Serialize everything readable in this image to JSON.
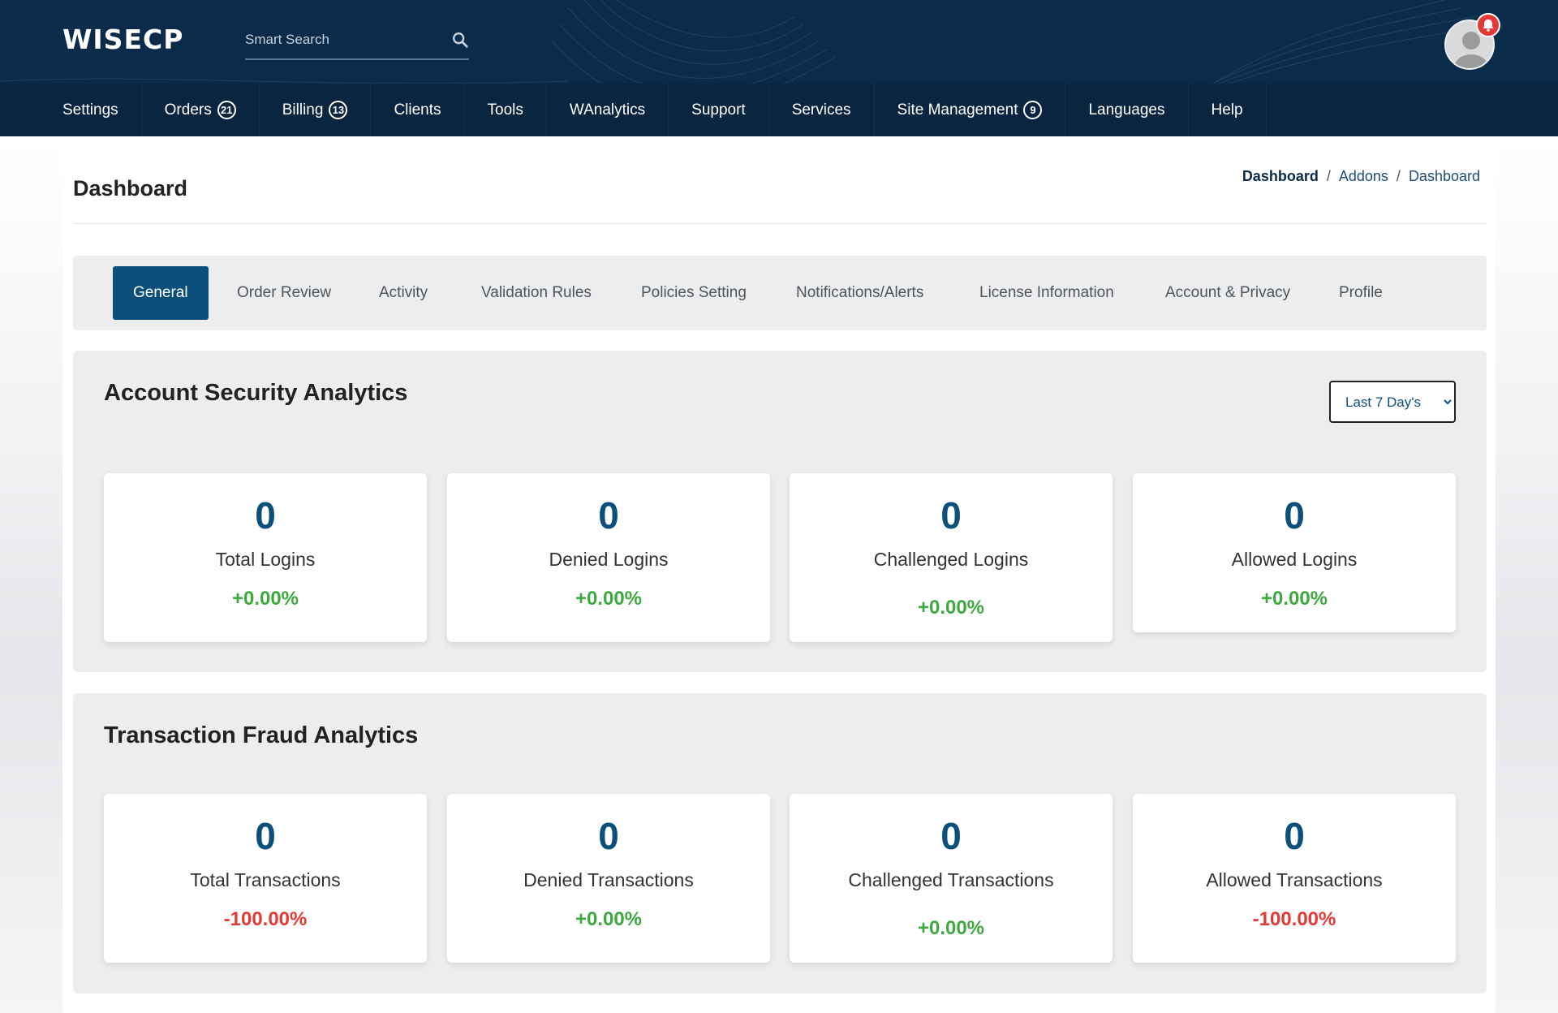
{
  "header": {
    "logo_text": "WISECP",
    "search_placeholder": "Smart Search",
    "notification_color": "#e53935",
    "brand_color": "#0b2b4a"
  },
  "nav": {
    "items": [
      {
        "label": "Settings",
        "badge": ""
      },
      {
        "label": "Orders",
        "badge": "21"
      },
      {
        "label": "Billing",
        "badge": "13"
      },
      {
        "label": "Clients",
        "badge": ""
      },
      {
        "label": "Tools",
        "badge": ""
      },
      {
        "label": "WAnalytics",
        "badge": ""
      },
      {
        "label": "Support",
        "badge": ""
      },
      {
        "label": "Services",
        "badge": ""
      },
      {
        "label": "Site Management",
        "badge": "9"
      },
      {
        "label": "Languages",
        "badge": ""
      },
      {
        "label": "Help",
        "badge": ""
      }
    ]
  },
  "page": {
    "title": "Dashboard",
    "breadcrumb": [
      "Dashboard",
      "Addons",
      "Dashboard"
    ]
  },
  "tabs": [
    {
      "label": "General",
      "active": true
    },
    {
      "label": "Order Review",
      "active": false
    },
    {
      "label": "Activity",
      "active": false
    },
    {
      "label": "Validation Rules",
      "active": false
    },
    {
      "label": "Policies Setting",
      "active": false
    },
    {
      "label": "Notifications/Alerts",
      "active": false
    },
    {
      "label": "License Information",
      "active": false
    },
    {
      "label": "Account & Privacy",
      "active": false
    },
    {
      "label": "Profile",
      "active": false
    }
  ],
  "account_security": {
    "title": "Account Security Analytics",
    "range_selected": "Last 7 Day's",
    "cards": [
      {
        "value": "0",
        "label": "Total Logins",
        "change": "+0.00%",
        "trend": "pos"
      },
      {
        "value": "0",
        "label": "Denied Logins",
        "change": "+0.00%",
        "trend": "pos"
      },
      {
        "value": "0",
        "label": "Challenged Logins",
        "change": "+0.00%",
        "trend": "pos"
      },
      {
        "value": "0",
        "label": "Allowed Logins",
        "change": "+0.00%",
        "trend": "pos"
      }
    ]
  },
  "transaction_fraud": {
    "title": "Transaction Fraud Analytics",
    "cards": [
      {
        "value": "0",
        "label": "Total Transactions",
        "change": "-100.00%",
        "trend": "neg"
      },
      {
        "value": "0",
        "label": "Denied Transactions",
        "change": "+0.00%",
        "trend": "pos"
      },
      {
        "value": "0",
        "label": "Challenged Transactions",
        "change": "+0.00%",
        "trend": "pos"
      },
      {
        "value": "0",
        "label": "Allowed Transactions",
        "change": "-100.00%",
        "trend": "neg"
      }
    ]
  },
  "colors": {
    "positive": "#3ea93f",
    "negative": "#e53935",
    "accent": "#0b4f7a"
  }
}
